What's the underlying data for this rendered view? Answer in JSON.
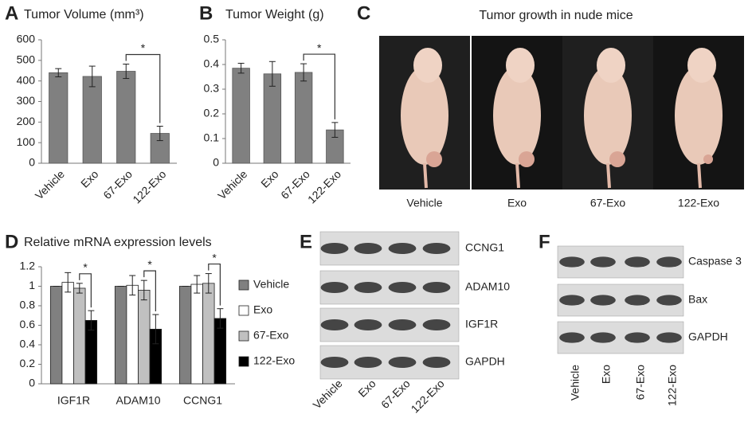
{
  "figure": {
    "panel_labels": [
      "A",
      "B",
      "C",
      "D",
      "E",
      "F"
    ],
    "photo_panel": {
      "title": "Tumor growth in nude mice",
      "labels": [
        "Vehicle",
        "Exo",
        "67-Exo",
        "122-Exo"
      ]
    },
    "blot_e": {
      "proteins": [
        "CCNG1",
        "ADAM10",
        "IGF1R",
        "GAPDH"
      ],
      "lanes": [
        "Vehicle",
        "Exo",
        "67-Exo",
        "122-Exo"
      ]
    },
    "blot_f": {
      "proteins": [
        "Caspase 3",
        "Bax",
        "GAPDH"
      ],
      "lanes": [
        "Vehicle",
        "Exo",
        "67-Exo",
        "122-Exo"
      ]
    }
  },
  "chart_data": [
    {
      "type": "bar",
      "title": "Tumor Volume (mm³)",
      "categories": [
        "Vehicle",
        "Exo",
        "67-Exo",
        "122-Exo"
      ],
      "values": [
        440,
        422,
        447,
        145
      ],
      "errors": [
        20,
        50,
        35,
        35
      ],
      "color": "#808080",
      "ylim": [
        0,
        600
      ],
      "yticks": [
        0,
        100,
        200,
        300,
        400,
        500,
        600
      ],
      "annotations": [
        "*"
      ]
    },
    {
      "type": "bar",
      "title": "Tumor Weight (g)",
      "categories": [
        "Vehicle",
        "Exo",
        "67-Exo",
        "122-Exo"
      ],
      "values": [
        0.385,
        0.362,
        0.368,
        0.135
      ],
      "errors": [
        0.02,
        0.05,
        0.035,
        0.03
      ],
      "color": "#808080",
      "ylim": [
        0,
        0.5
      ],
      "yticks": [
        0,
        0.1,
        0.2,
        0.3,
        0.4,
        0.5
      ],
      "annotations": [
        "*"
      ]
    },
    {
      "type": "bar",
      "title": "Relative mRNA expression levels",
      "categories": [
        "IGF1R",
        "ADAM10",
        "CCNG1"
      ],
      "series": [
        {
          "name": "Vehicle",
          "color": "#808080",
          "values": [
            1,
            1,
            1
          ],
          "errors": [
            0,
            0,
            0
          ]
        },
        {
          "name": "Exo",
          "color": "#ffffff",
          "values": [
            1.04,
            1.01,
            1.02
          ],
          "errors": [
            0.1,
            0.1,
            0.09
          ]
        },
        {
          "name": "67-Exo",
          "color": "#c0c0c0",
          "values": [
            0.98,
            0.96,
            1.03
          ],
          "errors": [
            0.05,
            0.1,
            0.1
          ]
        },
        {
          "name": "122-Exo",
          "color": "#000000",
          "values": [
            0.65,
            0.56,
            0.67
          ],
          "errors": [
            0.1,
            0.15,
            0.1
          ]
        }
      ],
      "ylim": [
        0,
        1.2
      ],
      "yticks": [
        0,
        0.2,
        0.4,
        0.6,
        0.8,
        1,
        1.2
      ],
      "legend": "right",
      "annotations": [
        "*",
        "*",
        "*"
      ]
    }
  ]
}
